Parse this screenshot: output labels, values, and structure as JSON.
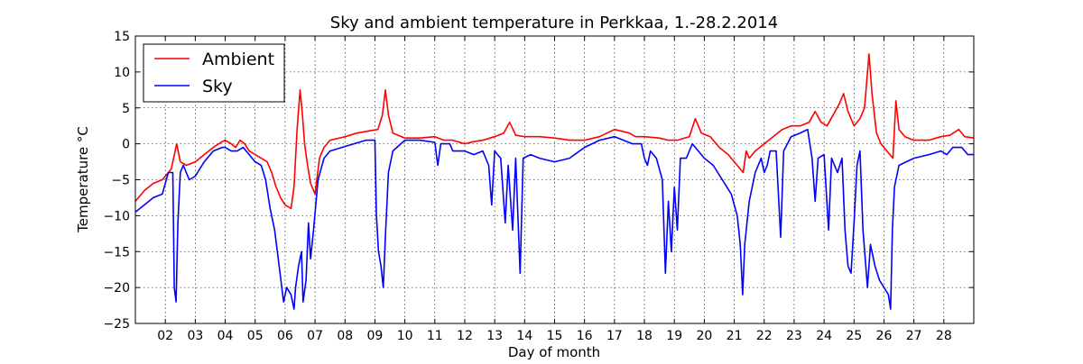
{
  "chart_data": {
    "type": "line",
    "title": "Sky and ambient temperature in Perkkaa, 1.-28.2.2014",
    "xlabel": "Day of month",
    "ylabel": "Temperature °C",
    "xlim": [
      1.0,
      29.0
    ],
    "ylim": [
      -25,
      15
    ],
    "yticks": [
      15,
      10,
      5,
      0,
      -5,
      -10,
      -15,
      -20,
      -25
    ],
    "xticks": [
      {
        "x": 2,
        "label": "02"
      },
      {
        "x": 3,
        "label": "03"
      },
      {
        "x": 4,
        "label": "04"
      },
      {
        "x": 5,
        "label": "05"
      },
      {
        "x": 6,
        "label": "06"
      },
      {
        "x": 7,
        "label": "07"
      },
      {
        "x": 8,
        "label": "08"
      },
      {
        "x": 9,
        "label": "09"
      },
      {
        "x": 10,
        "label": "10"
      },
      {
        "x": 11,
        "label": "11"
      },
      {
        "x": 12,
        "label": "12"
      },
      {
        "x": 13,
        "label": "13"
      },
      {
        "x": 14,
        "label": "14"
      },
      {
        "x": 15,
        "label": "15"
      },
      {
        "x": 16,
        "label": "16"
      },
      {
        "x": 17,
        "label": "17"
      },
      {
        "x": 18,
        "label": "18"
      },
      {
        "x": 19,
        "label": "19"
      },
      {
        "x": 20,
        "label": "20"
      },
      {
        "x": 21,
        "label": "21"
      },
      {
        "x": 22,
        "label": "22"
      },
      {
        "x": 23,
        "label": "23"
      },
      {
        "x": 24,
        "label": "24"
      },
      {
        "x": 25,
        "label": "25"
      },
      {
        "x": 26,
        "label": "26"
      },
      {
        "x": 27,
        "label": "27"
      },
      {
        "x": 28,
        "label": "28"
      }
    ],
    "grid": true,
    "legend": "top-left",
    "series": [
      {
        "name": "Ambient",
        "color": "#ff0000",
        "points": [
          [
            1.0,
            -8
          ],
          [
            1.3,
            -6.5
          ],
          [
            1.6,
            -5.5
          ],
          [
            1.9,
            -5
          ],
          [
            2.2,
            -3.5
          ],
          [
            2.38,
            0
          ],
          [
            2.5,
            -2.5
          ],
          [
            2.7,
            -3
          ],
          [
            3.0,
            -2.5
          ],
          [
            3.3,
            -1.5
          ],
          [
            3.6,
            -0.5
          ],
          [
            3.9,
            0.3
          ],
          [
            4.0,
            0.5
          ],
          [
            4.2,
            0
          ],
          [
            4.35,
            -0.5
          ],
          [
            4.5,
            0.5
          ],
          [
            4.65,
            0
          ],
          [
            4.8,
            -1
          ],
          [
            5.0,
            -1.5
          ],
          [
            5.2,
            -2
          ],
          [
            5.4,
            -2.5
          ],
          [
            5.55,
            -4
          ],
          [
            5.7,
            -6
          ],
          [
            5.85,
            -7.5
          ],
          [
            6.0,
            -8.5
          ],
          [
            6.2,
            -9
          ],
          [
            6.3,
            -6
          ],
          [
            6.4,
            2
          ],
          [
            6.5,
            7.5
          ],
          [
            6.58,
            4
          ],
          [
            6.65,
            0
          ],
          [
            6.75,
            -3
          ],
          [
            6.85,
            -5.5
          ],
          [
            7.0,
            -7
          ],
          [
            7.15,
            -2
          ],
          [
            7.3,
            -0.5
          ],
          [
            7.5,
            0.5
          ],
          [
            8.0,
            1
          ],
          [
            8.4,
            1.5
          ],
          [
            8.8,
            1.8
          ],
          [
            9.1,
            2
          ],
          [
            9.25,
            4
          ],
          [
            9.35,
            7.5
          ],
          [
            9.45,
            4
          ],
          [
            9.6,
            1.5
          ],
          [
            10.0,
            0.8
          ],
          [
            10.5,
            0.8
          ],
          [
            11.0,
            1
          ],
          [
            11.3,
            0.5
          ],
          [
            11.6,
            0.5
          ],
          [
            12.0,
            0
          ],
          [
            12.3,
            0.3
          ],
          [
            12.6,
            0.5
          ],
          [
            13.0,
            1
          ],
          [
            13.3,
            1.5
          ],
          [
            13.5,
            3
          ],
          [
            13.7,
            1.2
          ],
          [
            14.0,
            1
          ],
          [
            14.5,
            1
          ],
          [
            15.0,
            0.8
          ],
          [
            15.5,
            0.5
          ],
          [
            16.0,
            0.5
          ],
          [
            16.5,
            1
          ],
          [
            17.0,
            2
          ],
          [
            17.5,
            1.5
          ],
          [
            17.7,
            1
          ],
          [
            18.0,
            1
          ],
          [
            18.5,
            0.8
          ],
          [
            18.8,
            0.5
          ],
          [
            19.1,
            0.5
          ],
          [
            19.5,
            1
          ],
          [
            19.7,
            3.5
          ],
          [
            19.9,
            1.5
          ],
          [
            20.2,
            1
          ],
          [
            20.5,
            -0.5
          ],
          [
            20.8,
            -1.5
          ],
          [
            21.0,
            -2.5
          ],
          [
            21.3,
            -4
          ],
          [
            21.4,
            -1
          ],
          [
            21.5,
            -2
          ],
          [
            21.7,
            -1
          ],
          [
            22.0,
            0
          ],
          [
            22.3,
            1
          ],
          [
            22.6,
            2
          ],
          [
            22.9,
            2.5
          ],
          [
            23.2,
            2.5
          ],
          [
            23.5,
            3
          ],
          [
            23.7,
            4.5
          ],
          [
            23.9,
            3
          ],
          [
            24.1,
            2.5
          ],
          [
            24.3,
            4
          ],
          [
            24.5,
            5.5
          ],
          [
            24.65,
            7
          ],
          [
            24.8,
            4.5
          ],
          [
            25.0,
            2.5
          ],
          [
            25.2,
            3.5
          ],
          [
            25.35,
            5
          ],
          [
            25.5,
            12.5
          ],
          [
            25.6,
            7
          ],
          [
            25.75,
            1.5
          ],
          [
            25.9,
            0
          ],
          [
            26.1,
            -1
          ],
          [
            26.3,
            -2
          ],
          [
            26.4,
            6
          ],
          [
            26.5,
            2
          ],
          [
            26.7,
            1
          ],
          [
            27.0,
            0.5
          ],
          [
            27.5,
            0.5
          ],
          [
            27.9,
            1
          ],
          [
            28.2,
            1.2
          ],
          [
            28.5,
            2
          ],
          [
            28.7,
            1
          ],
          [
            29.0,
            0.8
          ]
        ]
      },
      {
        "name": "Sky",
        "color": "#0000ff",
        "points": [
          [
            1.0,
            -9.5
          ],
          [
            1.3,
            -8.5
          ],
          [
            1.6,
            -7.5
          ],
          [
            1.9,
            -7
          ],
          [
            2.1,
            -4
          ],
          [
            2.25,
            -4
          ],
          [
            2.3,
            -20
          ],
          [
            2.36,
            -22
          ],
          [
            2.42,
            -11
          ],
          [
            2.5,
            -4
          ],
          [
            2.6,
            -3
          ],
          [
            2.8,
            -5
          ],
          [
            3.0,
            -4.5
          ],
          [
            3.3,
            -2.5
          ],
          [
            3.6,
            -1
          ],
          [
            3.9,
            -0.5
          ],
          [
            4.0,
            -0.5
          ],
          [
            4.2,
            -1
          ],
          [
            4.4,
            -1
          ],
          [
            4.6,
            -0.5
          ],
          [
            4.8,
            -1.5
          ],
          [
            5.0,
            -2.5
          ],
          [
            5.2,
            -3
          ],
          [
            5.35,
            -5
          ],
          [
            5.5,
            -9
          ],
          [
            5.65,
            -12
          ],
          [
            5.8,
            -17
          ],
          [
            5.95,
            -22
          ],
          [
            6.05,
            -20
          ],
          [
            6.2,
            -21
          ],
          [
            6.3,
            -23
          ],
          [
            6.35,
            -20
          ],
          [
            6.45,
            -17
          ],
          [
            6.55,
            -15
          ],
          [
            6.6,
            -22
          ],
          [
            6.7,
            -19
          ],
          [
            6.78,
            -11
          ],
          [
            6.85,
            -16
          ],
          [
            6.95,
            -12
          ],
          [
            7.1,
            -5
          ],
          [
            7.3,
            -2
          ],
          [
            7.5,
            -1
          ],
          [
            7.9,
            -0.5
          ],
          [
            8.3,
            0
          ],
          [
            8.7,
            0.5
          ],
          [
            9.0,
            0.5
          ],
          [
            9.05,
            -10
          ],
          [
            9.12,
            -15
          ],
          [
            9.2,
            -17
          ],
          [
            9.28,
            -20
          ],
          [
            9.35,
            -13
          ],
          [
            9.45,
            -4
          ],
          [
            9.6,
            -1
          ],
          [
            10.0,
            0.5
          ],
          [
            10.5,
            0.5
          ],
          [
            11.0,
            0.2
          ],
          [
            11.1,
            -3
          ],
          [
            11.2,
            0
          ],
          [
            11.5,
            0
          ],
          [
            11.6,
            -1
          ],
          [
            12.0,
            -1
          ],
          [
            12.3,
            -1.5
          ],
          [
            12.6,
            -1
          ],
          [
            12.8,
            -3
          ],
          [
            12.9,
            -8.5
          ],
          [
            13.0,
            -1
          ],
          [
            13.2,
            -2
          ],
          [
            13.35,
            -11
          ],
          [
            13.45,
            -3
          ],
          [
            13.6,
            -12
          ],
          [
            13.7,
            -2
          ],
          [
            13.85,
            -18
          ],
          [
            13.95,
            -2
          ],
          [
            14.2,
            -1.5
          ],
          [
            14.5,
            -2
          ],
          [
            15.0,
            -2.5
          ],
          [
            15.5,
            -2
          ],
          [
            16.0,
            -0.5
          ],
          [
            16.5,
            0.5
          ],
          [
            17.0,
            1
          ],
          [
            17.3,
            0.5
          ],
          [
            17.6,
            0
          ],
          [
            17.9,
            0
          ],
          [
            18.0,
            -2
          ],
          [
            18.1,
            -3
          ],
          [
            18.2,
            -1
          ],
          [
            18.4,
            -2
          ],
          [
            18.6,
            -5
          ],
          [
            18.7,
            -18
          ],
          [
            18.8,
            -8
          ],
          [
            18.9,
            -15
          ],
          [
            19.0,
            -6
          ],
          [
            19.1,
            -12
          ],
          [
            19.2,
            -2
          ],
          [
            19.4,
            -2
          ],
          [
            19.6,
            0
          ],
          [
            19.8,
            -1
          ],
          [
            20.0,
            -2
          ],
          [
            20.3,
            -3
          ],
          [
            20.6,
            -5
          ],
          [
            20.9,
            -7
          ],
          [
            21.1,
            -10
          ],
          [
            21.2,
            -14
          ],
          [
            21.28,
            -21
          ],
          [
            21.35,
            -14
          ],
          [
            21.5,
            -8
          ],
          [
            21.7,
            -4
          ],
          [
            21.9,
            -2
          ],
          [
            22.0,
            -4
          ],
          [
            22.1,
            -3
          ],
          [
            22.2,
            -1
          ],
          [
            22.4,
            -1
          ],
          [
            22.55,
            -13
          ],
          [
            22.65,
            -1
          ],
          [
            22.9,
            1
          ],
          [
            23.2,
            1.5
          ],
          [
            23.45,
            2
          ],
          [
            23.6,
            -2
          ],
          [
            23.7,
            -8
          ],
          [
            23.8,
            -2
          ],
          [
            24.0,
            -1.5
          ],
          [
            24.15,
            -12
          ],
          [
            24.25,
            -2
          ],
          [
            24.45,
            -4
          ],
          [
            24.6,
            -2
          ],
          [
            24.7,
            -12
          ],
          [
            24.8,
            -17
          ],
          [
            24.9,
            -18
          ],
          [
            25.0,
            -11
          ],
          [
            25.1,
            -3
          ],
          [
            25.2,
            -1
          ],
          [
            25.3,
            -12
          ],
          [
            25.45,
            -20
          ],
          [
            25.55,
            -14
          ],
          [
            25.7,
            -17
          ],
          [
            25.85,
            -19
          ],
          [
            26.0,
            -20
          ],
          [
            26.15,
            -21
          ],
          [
            26.22,
            -23
          ],
          [
            26.28,
            -12
          ],
          [
            26.35,
            -6
          ],
          [
            26.5,
            -3
          ],
          [
            27.0,
            -2
          ],
          [
            27.5,
            -1.5
          ],
          [
            27.9,
            -1
          ],
          [
            28.1,
            -1.5
          ],
          [
            28.3,
            -0.5
          ],
          [
            28.6,
            -0.5
          ],
          [
            28.8,
            -1.5
          ],
          [
            29.0,
            -1.5
          ]
        ]
      }
    ]
  }
}
